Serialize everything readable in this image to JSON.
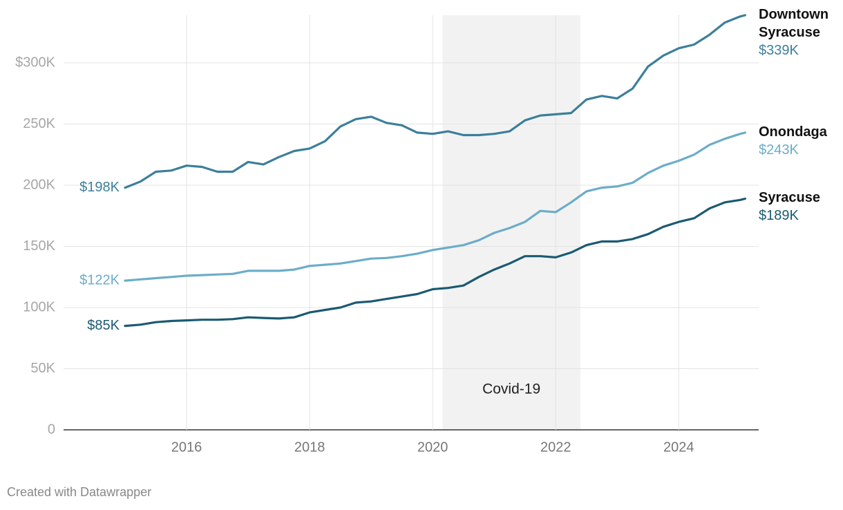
{
  "chart_data": {
    "type": "line",
    "x": [
      2015,
      2015.25,
      2015.5,
      2015.75,
      2016,
      2016.25,
      2016.5,
      2016.75,
      2017,
      2017.25,
      2017.5,
      2017.75,
      2018,
      2018.25,
      2018.5,
      2018.75,
      2019,
      2019.25,
      2019.5,
      2019.75,
      2020,
      2020.25,
      2020.5,
      2020.75,
      2021,
      2021.25,
      2021.5,
      2021.75,
      2022,
      2022.25,
      2022.5,
      2022.75,
      2023,
      2023.25,
      2023.5,
      2023.75,
      2024,
      2024.25,
      2024.5,
      2024.75,
      2025,
      2025.08
    ],
    "series": [
      {
        "name": "Downtown Syracuse",
        "color": "#3b7f9b",
        "values": [
          198000,
          203000,
          211000,
          212000,
          216000,
          215000,
          211000,
          211000,
          219000,
          217000,
          223000,
          228000,
          230000,
          236000,
          248000,
          254000,
          256000,
          251000,
          249000,
          243000,
          242000,
          244000,
          241000,
          241000,
          242000,
          244000,
          253000,
          257000,
          258000,
          259000,
          270000,
          273000,
          271000,
          279000,
          297000,
          306000,
          312000,
          315000,
          323000,
          333000,
          338000,
          339000
        ],
        "value_labels": [
          "$198K",
          null,
          null,
          null,
          null,
          null,
          null,
          null,
          null,
          null,
          null,
          null,
          null,
          null,
          null,
          null,
          null,
          null,
          null,
          null,
          null,
          null,
          null,
          null,
          null,
          null,
          null,
          null,
          null,
          null,
          null,
          null,
          null,
          null,
          null,
          null,
          null,
          null,
          null,
          null,
          null,
          "$339K"
        ]
      },
      {
        "name": "Onondaga",
        "color": "#6badc8",
        "values": [
          122000,
          123000,
          124000,
          125000,
          126000,
          126500,
          127000,
          127500,
          130000,
          130000,
          130000,
          131000,
          134000,
          135000,
          136000,
          138000,
          140000,
          140500,
          142000,
          144000,
          147000,
          149000,
          151000,
          155000,
          161000,
          165000,
          170000,
          179000,
          178000,
          186000,
          195000,
          198000,
          199000,
          202000,
          210000,
          216000,
          220000,
          225000,
          233000,
          238000,
          242000,
          243000
        ],
        "value_labels": [
          "$122K",
          null,
          null,
          null,
          null,
          null,
          null,
          null,
          null,
          null,
          null,
          null,
          null,
          null,
          null,
          null,
          null,
          null,
          null,
          null,
          null,
          null,
          null,
          null,
          null,
          null,
          null,
          null,
          null,
          null,
          null,
          null,
          null,
          null,
          null,
          null,
          null,
          null,
          null,
          null,
          null,
          "$243K"
        ]
      },
      {
        "name": "Syracuse",
        "color": "#1a5a72",
        "values": [
          85000,
          86000,
          88000,
          89000,
          89500,
          90000,
          90000,
          90500,
          92000,
          91500,
          91000,
          92000,
          96000,
          98000,
          100000,
          104000,
          105000,
          107000,
          109000,
          111000,
          115000,
          116000,
          118000,
          125000,
          131000,
          136000,
          142000,
          142000,
          141000,
          145000,
          151000,
          154000,
          154000,
          156000,
          160000,
          166000,
          170000,
          173000,
          181000,
          186000,
          188000,
          189000
        ],
        "value_labels": [
          "$85K",
          null,
          null,
          null,
          null,
          null,
          null,
          null,
          null,
          null,
          null,
          null,
          null,
          null,
          null,
          null,
          null,
          null,
          null,
          null,
          null,
          null,
          null,
          null,
          null,
          null,
          null,
          null,
          null,
          null,
          null,
          null,
          null,
          null,
          null,
          null,
          null,
          null,
          null,
          null,
          null,
          "$189K"
        ]
      }
    ],
    "xlim": [
      2014,
      2025.3
    ],
    "ylim": [
      0,
      339000
    ],
    "xticks": [
      2016,
      2018,
      2020,
      2022,
      2024
    ],
    "yticks": [
      0,
      {
        "value": 50000,
        "label": "50K"
      },
      {
        "value": 100000,
        "label": "100K"
      },
      {
        "value": 150000,
        "label": "150K"
      },
      {
        "value": 200000,
        "label": "200K"
      },
      {
        "value": 250000,
        "label": "250K"
      },
      {
        "value": 300000,
        "label": "$300K"
      }
    ],
    "grid": true,
    "annotations": [
      {
        "text": "Covid-19",
        "x": [
          2020.16,
          2022.4
        ]
      }
    ],
    "footer": "Created with Datawrapper"
  }
}
